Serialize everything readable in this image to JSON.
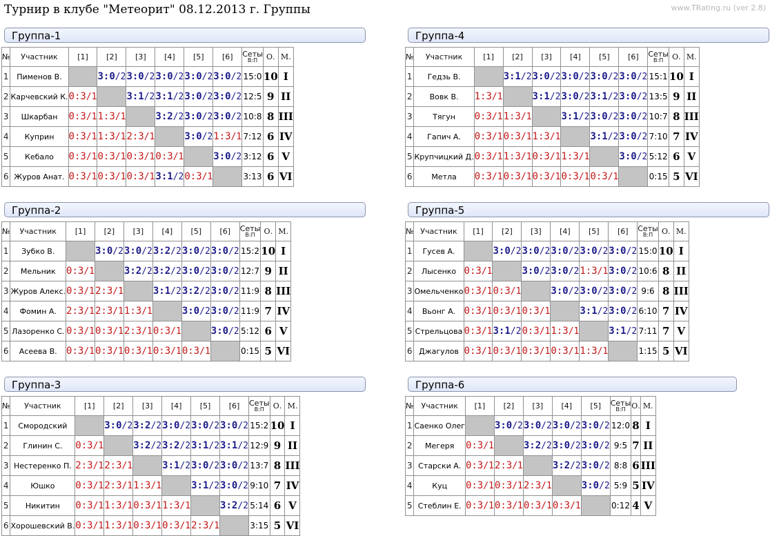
{
  "title": "Турнир в клубе \"Метеорит\" 08.12.2013 г. Группы",
  "watermark": "www.TRating.ru (ver 2.8)",
  "headers": {
    "num": "№",
    "participant": "Участник",
    "sets": "Сеты",
    "sets_sub": "В:П",
    "points": "О.",
    "place": "М."
  },
  "groups": [
    {
      "title": "Группа-1",
      "players": [
        {
          "n": "1",
          "name": "Пименов В.",
          "results": [
            null,
            "3:0/2",
            "3:0/2",
            "3:0/2",
            "3:0/2",
            "3:0/2"
          ],
          "sets": "15:0",
          "points": "10",
          "place": "I"
        },
        {
          "n": "2",
          "name": "Карчевский К.",
          "results": [
            "0:3/1",
            null,
            "3:1/2",
            "3:1/2",
            "3:0/2",
            "3:0/2"
          ],
          "sets": "12:5",
          "points": "9",
          "place": "II"
        },
        {
          "n": "3",
          "name": "Шкарбан",
          "results": [
            "0:3/1",
            "1:3/1",
            null,
            "3:2/2",
            "3:0/2",
            "3:0/2"
          ],
          "sets": "10:8",
          "points": "8",
          "place": "III"
        },
        {
          "n": "4",
          "name": "Куприн",
          "results": [
            "0:3/1",
            "1:3/1",
            "2:3/1",
            null,
            "3:0/2",
            "1:3/1"
          ],
          "sets": "7:12",
          "points": "6",
          "place": "IV"
        },
        {
          "n": "5",
          "name": "Кебало",
          "results": [
            "0:3/1",
            "0:3/1",
            "0:3/1",
            "0:3/1",
            null,
            "3:0/2"
          ],
          "sets": "3:12",
          "points": "6",
          "place": "V"
        },
        {
          "n": "6",
          "name": "Журов Анат.",
          "results": [
            "0:3/1",
            "0:3/1",
            "0:3/1",
            "3:1/2",
            "0:3/1",
            null
          ],
          "sets": "3:13",
          "points": "6",
          "place": "VI"
        }
      ]
    },
    {
      "title": "Группа-2",
      "players": [
        {
          "n": "1",
          "name": "Зубко В.",
          "results": [
            null,
            "3:0/2",
            "3:0/2",
            "3:2/2",
            "3:0/2",
            "3:0/2"
          ],
          "sets": "15:2",
          "points": "10",
          "place": "I"
        },
        {
          "n": "2",
          "name": "Мельник",
          "results": [
            "0:3/1",
            null,
            "3:2/2",
            "3:2/2",
            "3:0/2",
            "3:0/2"
          ],
          "sets": "12:7",
          "points": "9",
          "place": "II"
        },
        {
          "n": "3",
          "name": "Журов Алекс.",
          "results": [
            "0:3/1",
            "2:3/1",
            null,
            "3:1/2",
            "3:2/2",
            "3:0/2"
          ],
          "sets": "11:9",
          "points": "8",
          "place": "III"
        },
        {
          "n": "4",
          "name": "Фомин А.",
          "results": [
            "2:3/1",
            "2:3/1",
            "1:3/1",
            null,
            "3:0/2",
            "3:0/2"
          ],
          "sets": "11:9",
          "points": "7",
          "place": "IV"
        },
        {
          "n": "5",
          "name": "Лазоренко С.",
          "results": [
            "0:3/1",
            "0:3/1",
            "2:3/1",
            "0:3/1",
            null,
            "3:0/2"
          ],
          "sets": "5:12",
          "points": "6",
          "place": "V"
        },
        {
          "n": "6",
          "name": "Асеева В.",
          "results": [
            "0:3/1",
            "0:3/1",
            "0:3/1",
            "0:3/1",
            "0:3/1",
            null
          ],
          "sets": "0:15",
          "points": "5",
          "place": "VI"
        }
      ]
    },
    {
      "title": "Группа-3",
      "players": [
        {
          "n": "1",
          "name": "Смородский",
          "results": [
            null,
            "3:0/2",
            "3:2/2",
            "3:0/2",
            "3:0/2",
            "3:0/2"
          ],
          "sets": "15:2",
          "points": "10",
          "place": "I"
        },
        {
          "n": "2",
          "name": "Глинин С.",
          "results": [
            "0:3/1",
            null,
            "3:2/2",
            "3:2/2",
            "3:1/2",
            "3:1/2"
          ],
          "sets": "12:9",
          "points": "9",
          "place": "II"
        },
        {
          "n": "3",
          "name": "Нестеренко П.",
          "results": [
            "2:3/1",
            "2:3/1",
            null,
            "3:1/2",
            "3:0/2",
            "3:0/2"
          ],
          "sets": "13:7",
          "points": "8",
          "place": "III"
        },
        {
          "n": "4",
          "name": "Юшко",
          "results": [
            "0:3/1",
            "2:3/1",
            "1:3/1",
            null,
            "3:1/2",
            "3:0/2"
          ],
          "sets": "9:10",
          "points": "7",
          "place": "IV"
        },
        {
          "n": "5",
          "name": "Никитин",
          "results": [
            "0:3/1",
            "1:3/1",
            "0:3/1",
            "1:3/1",
            null,
            "3:2/2"
          ],
          "sets": "5:14",
          "points": "6",
          "place": "V"
        },
        {
          "n": "6",
          "name": "Хорошевский В.",
          "results": [
            "0:3/1",
            "1:3/1",
            "0:3/1",
            "0:3/1",
            "2:3/1",
            null
          ],
          "sets": "3:15",
          "points": "5",
          "place": "VI"
        }
      ]
    },
    {
      "title": "Группа-4",
      "players": [
        {
          "n": "1",
          "name": "Гедзь В.",
          "results": [
            null,
            "3:1/2",
            "3:0/2",
            "3:0/2",
            "3:0/2",
            "3:0/2"
          ],
          "sets": "15:1",
          "points": "10",
          "place": "I"
        },
        {
          "n": "2",
          "name": "Вовк В.",
          "results": [
            "1:3/1",
            null,
            "3:1/2",
            "3:0/2",
            "3:1/2",
            "3:0/2"
          ],
          "sets": "13:5",
          "points": "9",
          "place": "II"
        },
        {
          "n": "3",
          "name": "Тягун",
          "results": [
            "0:3/1",
            "1:3/1",
            null,
            "3:1/2",
            "3:0/2",
            "3:0/2"
          ],
          "sets": "10:7",
          "points": "8",
          "place": "III"
        },
        {
          "n": "4",
          "name": "Гапич А.",
          "results": [
            "0:3/1",
            "0:3/1",
            "1:3/1",
            null,
            "3:1/2",
            "3:0/2"
          ],
          "sets": "7:10",
          "points": "7",
          "place": "IV"
        },
        {
          "n": "5",
          "name": "Крупчицкий Д.",
          "results": [
            "0:3/1",
            "1:3/1",
            "0:3/1",
            "1:3/1",
            null,
            "3:0/2"
          ],
          "sets": "5:12",
          "points": "6",
          "place": "V"
        },
        {
          "n": "6",
          "name": "Метла",
          "results": [
            "0:3/1",
            "0:3/1",
            "0:3/1",
            "0:3/1",
            "0:3/1",
            null
          ],
          "sets": "0:15",
          "points": "5",
          "place": "VI"
        }
      ]
    },
    {
      "title": "Группа-5",
      "players": [
        {
          "n": "1",
          "name": "Гусев А.",
          "results": [
            null,
            "3:0/2",
            "3:0/2",
            "3:0/2",
            "3:0/2",
            "3:0/2"
          ],
          "sets": "15:0",
          "points": "10",
          "place": "I"
        },
        {
          "n": "2",
          "name": "Лысенко",
          "results": [
            "0:3/1",
            null,
            "3:0/2",
            "3:0/2",
            "1:3/1",
            "3:0/2"
          ],
          "sets": "10:6",
          "points": "8",
          "place": "II"
        },
        {
          "n": "3",
          "name": "Омельченко",
          "results": [
            "0:3/1",
            "0:3/1",
            null,
            "3:0/2",
            "3:0/2",
            "3:0/2"
          ],
          "sets": "9:6",
          "points": "8",
          "place": "III"
        },
        {
          "n": "4",
          "name": "Вьонг А.",
          "results": [
            "0:3/1",
            "0:3/1",
            "0:3/1",
            null,
            "3:1/2",
            "3:0/2"
          ],
          "sets": "6:10",
          "points": "7",
          "place": "IV"
        },
        {
          "n": "5",
          "name": "Стрельцова",
          "results": [
            "0:3/1",
            "3:1/2",
            "0:3/1",
            "1:3/1",
            null,
            "3:1/2"
          ],
          "sets": "7:11",
          "points": "7",
          "place": "V"
        },
        {
          "n": "6",
          "name": "Джагулов",
          "results": [
            "0:3/1",
            "0:3/1",
            "0:3/1",
            "0:3/1",
            "1:3/1",
            null
          ],
          "sets": "1:15",
          "points": "5",
          "place": "VI"
        }
      ]
    },
    {
      "title": "Группа-6",
      "players": [
        {
          "n": "1",
          "name": "Саенко Олег",
          "results": [
            null,
            "3:0/2",
            "3:0/2",
            "3:0/2",
            "3:0/2"
          ],
          "sets": "12:0",
          "points": "8",
          "place": "I"
        },
        {
          "n": "2",
          "name": "Мегеря",
          "results": [
            "0:3/1",
            null,
            "3:2/2",
            "3:0/2",
            "3:0/2"
          ],
          "sets": "9:5",
          "points": "7",
          "place": "II"
        },
        {
          "n": "3",
          "name": "Старски А.",
          "results": [
            "0:3/1",
            "2:3/1",
            null,
            "3:2/2",
            "3:0/2"
          ],
          "sets": "8:8",
          "points": "6",
          "place": "III"
        },
        {
          "n": "4",
          "name": "Куц",
          "results": [
            "0:3/1",
            "0:3/1",
            "2:3/1",
            null,
            "3:0/2"
          ],
          "sets": "5:9",
          "points": "5",
          "place": "IV"
        },
        {
          "n": "5",
          "name": "Стеблин Е.",
          "results": [
            "0:3/1",
            "0:3/1",
            "0:3/1",
            "0:3/1",
            null
          ],
          "sets": "0:12",
          "points": "4",
          "place": "V"
        }
      ]
    }
  ]
}
